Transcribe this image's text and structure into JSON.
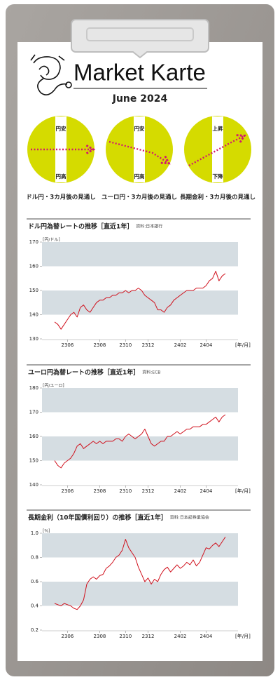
{
  "header": {
    "title": "Market Karte",
    "date": "June 2024"
  },
  "outlooks": [
    {
      "top": "円安",
      "bottom": "円高",
      "caption": "ドル円・3カ月後の見通し"
    },
    {
      "top": "円安",
      "bottom": "円高",
      "caption": "ユーロ円・3カ月後の見通し"
    },
    {
      "top": "上昇",
      "bottom": "下降",
      "caption": "長期金利・3カ月後の見通し"
    }
  ],
  "chart_data": [
    {
      "type": "line",
      "title": "ドル円為替レートの推移［直近1年］",
      "source": "資料:日本銀行",
      "y_label": "[円/ドル]",
      "x_label": "[年/月]",
      "color": "#d0101c",
      "categories": [
        null,
        null,
        null,
        null,
        "2306",
        null,
        null,
        null,
        null,
        null,
        null,
        null,
        null,
        null,
        "2308",
        null,
        null,
        null,
        null,
        null,
        null,
        null,
        "2310",
        null,
        null,
        null,
        null,
        null,
        null,
        "2312",
        null,
        null,
        null,
        null,
        null,
        null,
        null,
        null,
        null,
        "2402",
        null,
        null,
        null,
        null,
        null,
        null,
        null,
        "2404",
        null,
        null,
        null,
        null,
        null,
        null
      ],
      "values": [
        137,
        136,
        134,
        136,
        138,
        140,
        141,
        139,
        143,
        144,
        142,
        141,
        143,
        145,
        146,
        146,
        147,
        147,
        148,
        148,
        149,
        149,
        150,
        149,
        150,
        150,
        151,
        150,
        148,
        147,
        146,
        145,
        142,
        142,
        141,
        143,
        144,
        146,
        147,
        148,
        149,
        150,
        150,
        150,
        151,
        151,
        151,
        152,
        154,
        155,
        158,
        154,
        156,
        157
      ],
      "ylim": [
        130,
        170
      ],
      "yticks": [
        130,
        140,
        150,
        160,
        170
      ]
    },
    {
      "type": "line",
      "title": "ユーロ円為替レートの推移［直近1年］",
      "source": "資料:ECB",
      "y_label": "[円/ユーロ]",
      "x_label": "[年/月]",
      "color": "#d0101c",
      "categories": [
        null,
        null,
        null,
        null,
        "2306",
        null,
        null,
        null,
        null,
        null,
        null,
        null,
        null,
        null,
        "2308",
        null,
        null,
        null,
        null,
        null,
        null,
        null,
        "2310",
        null,
        null,
        null,
        null,
        null,
        null,
        "2312",
        null,
        null,
        null,
        null,
        null,
        null,
        null,
        null,
        null,
        "2402",
        null,
        null,
        null,
        null,
        null,
        null,
        null,
        "2404",
        null,
        null,
        null,
        null,
        null,
        null
      ],
      "values": [
        150,
        148,
        147,
        149,
        150,
        151,
        153,
        156,
        157,
        155,
        156,
        157,
        158,
        157,
        158,
        157,
        158,
        158,
        158,
        159,
        159,
        158,
        160,
        161,
        160,
        159,
        160,
        161,
        163,
        160,
        157,
        156,
        157,
        158,
        158,
        160,
        160,
        161,
        162,
        161,
        162,
        163,
        163,
        164,
        164,
        164,
        165,
        165,
        166,
        167,
        168,
        166,
        168,
        169
      ],
      "ylim": [
        140,
        180
      ],
      "yticks": [
        140,
        150,
        160,
        170,
        180
      ]
    },
    {
      "type": "line",
      "title": "長期金利（10年国債利回り）の推移［直近1年］",
      "source": "資料:日本証券業協会",
      "y_label": "[%]",
      "x_label": "[年/月]",
      "color": "#d0101c",
      "categories": [
        null,
        null,
        null,
        null,
        "2306",
        null,
        null,
        null,
        null,
        null,
        null,
        null,
        null,
        null,
        "2308",
        null,
        null,
        null,
        null,
        null,
        null,
        null,
        "2310",
        null,
        null,
        null,
        null,
        null,
        null,
        "2312",
        null,
        null,
        null,
        null,
        null,
        null,
        null,
        null,
        null,
        "2402",
        null,
        null,
        null,
        null,
        null,
        null,
        null,
        "2404",
        null,
        null,
        null,
        null,
        null,
        null
      ],
      "values": [
        0.42,
        0.41,
        0.4,
        0.42,
        0.41,
        0.4,
        0.38,
        0.37,
        0.4,
        0.45,
        0.58,
        0.62,
        0.64,
        0.62,
        0.65,
        0.66,
        0.71,
        0.73,
        0.76,
        0.8,
        0.82,
        0.86,
        0.95,
        0.88,
        0.84,
        0.8,
        0.72,
        0.66,
        0.6,
        0.63,
        0.58,
        0.62,
        0.6,
        0.66,
        0.7,
        0.72,
        0.68,
        0.71,
        0.74,
        0.71,
        0.73,
        0.76,
        0.74,
        0.78,
        0.73,
        0.76,
        0.82,
        0.88,
        0.87,
        0.9,
        0.92,
        0.89,
        0.93,
        0.97
      ],
      "ylim": [
        0.2,
        1
      ],
      "yticks": [
        0.2,
        0.4,
        0.6,
        0.8,
        {
          "value": 1,
          "label": "1.0"
        }
      ]
    }
  ]
}
